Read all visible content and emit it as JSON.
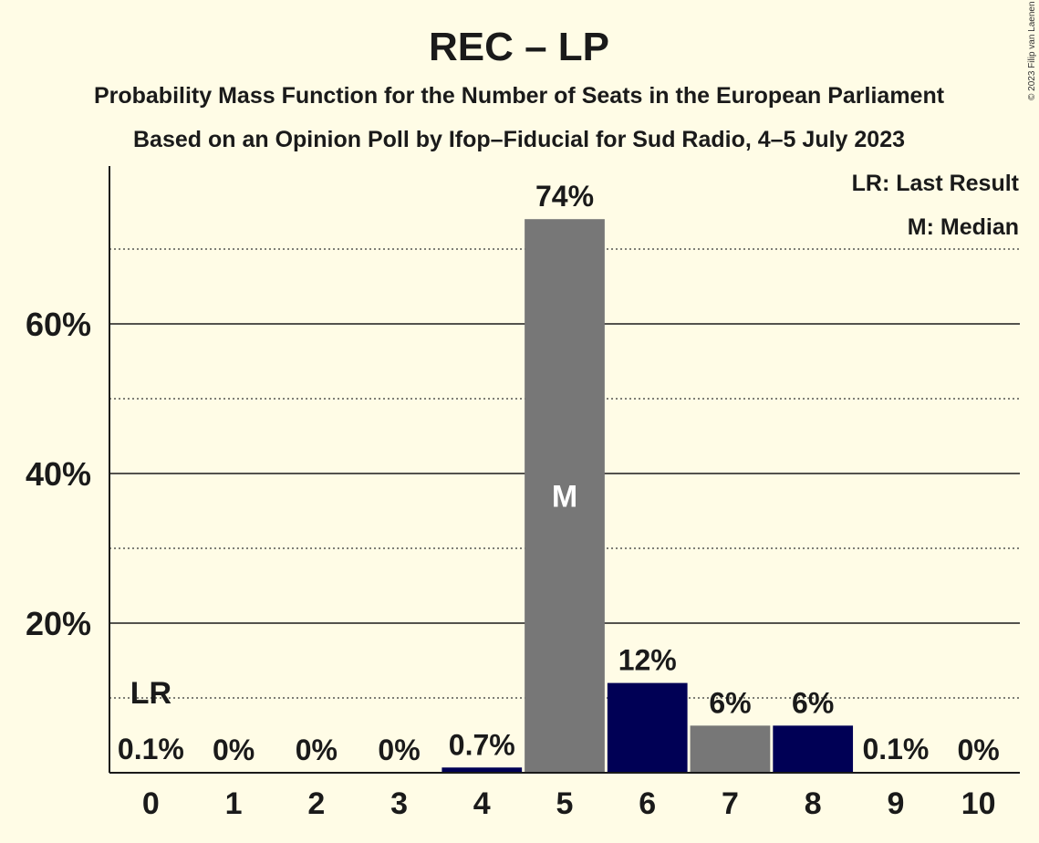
{
  "chart_data": {
    "type": "bar",
    "title": "REC – LP",
    "subtitle1": "Probability Mass Function for the Number of Seats in the European Parliament",
    "subtitle2": "Based on an Opinion Poll by Ifop–Fiducial for Sud Radio, 4–5 July 2023",
    "categories": [
      "0",
      "1",
      "2",
      "3",
      "4",
      "5",
      "6",
      "7",
      "8",
      "9",
      "10"
    ],
    "values": [
      0.1,
      0,
      0,
      0,
      0.7,
      74,
      12,
      6.3,
      6.3,
      0.1,
      0
    ],
    "value_labels": [
      "0.1%",
      "0%",
      "0%",
      "0%",
      "0.7%",
      "74%",
      "12%",
      "6%",
      "6%",
      "0.1%",
      "0%"
    ],
    "bar_colors": [
      "#000055",
      "#777777",
      "#000055",
      "#777777",
      "#000055",
      "#777777",
      "#000055",
      "#777777",
      "#000055",
      "#777777",
      "#000055"
    ],
    "ylim": [
      0,
      81
    ],
    "yticks": [
      {
        "value": 20,
        "label": "20%"
      },
      {
        "value": 40,
        "label": "40%"
      },
      {
        "value": 60,
        "label": "60%"
      }
    ],
    "minor_gridlines": [
      10,
      30,
      50,
      70
    ],
    "median_index": 5,
    "median_marker": "M",
    "last_result_index": 0,
    "last_result_marker": "LR",
    "legend": [
      "LR: Last Result",
      "M: Median"
    ],
    "legend_position": "top-right",
    "copyright": "© 2023 Filip van Laenen"
  }
}
